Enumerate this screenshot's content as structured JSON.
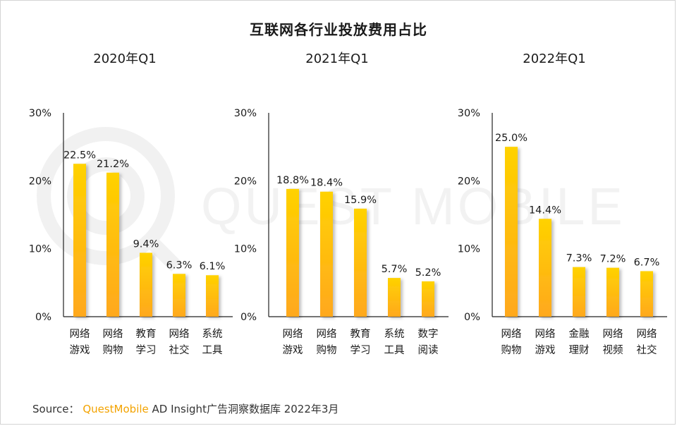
{
  "title": "互联网各行业投放费用占比",
  "colors": {
    "bar_top": "#FFD200",
    "bar_bottom": "#FFA81E",
    "axis": "#222222",
    "brand": "#F3A300"
  },
  "chart_data": [
    {
      "type": "bar",
      "title": "2020年Q1",
      "ylim": [
        0,
        30
      ],
      "yticks": [
        "0%",
        "10%",
        "20%",
        "30%"
      ],
      "categories": [
        [
          "网络",
          "游戏"
        ],
        [
          "网络",
          "购物"
        ],
        [
          "教育",
          "学习"
        ],
        [
          "网络",
          "社交"
        ],
        [
          "系统",
          "工具"
        ]
      ],
      "values": [
        22.5,
        21.2,
        9.4,
        6.3,
        6.1
      ],
      "labels": [
        "22.5%",
        "21.2%",
        "9.4%",
        "6.3%",
        "6.1%"
      ]
    },
    {
      "type": "bar",
      "title": "2021年Q1",
      "ylim": [
        0,
        30
      ],
      "yticks": [
        "0%",
        "10%",
        "20%",
        "30%"
      ],
      "categories": [
        [
          "网络",
          "游戏"
        ],
        [
          "网络",
          "购物"
        ],
        [
          "教育",
          "学习"
        ],
        [
          "系统",
          "工具"
        ],
        [
          "数字",
          "阅读"
        ]
      ],
      "values": [
        18.8,
        18.4,
        15.9,
        5.7,
        5.2
      ],
      "labels": [
        "18.8%",
        "18.4%",
        "15.9%",
        "5.7%",
        "5.2%"
      ]
    },
    {
      "type": "bar",
      "title": "2022年Q1",
      "ylim": [
        0,
        30
      ],
      "yticks": [
        "0%",
        "10%",
        "20%",
        "30%"
      ],
      "categories": [
        [
          "网络",
          "购物"
        ],
        [
          "网络",
          "游戏"
        ],
        [
          "金融",
          "理财"
        ],
        [
          "网络",
          "视频"
        ],
        [
          "网络",
          "社交"
        ]
      ],
      "values": [
        25.0,
        14.4,
        7.3,
        7.2,
        6.7
      ],
      "labels": [
        "25.0%",
        "14.4%",
        "7.3%",
        "7.2%",
        "6.7%"
      ]
    }
  ],
  "watermark": "QUEST MOBILE",
  "source": {
    "prefix": "Source：",
    "brand": "QuestMobile",
    "text": " AD Insight广告洞察数据库 2022年3月"
  }
}
